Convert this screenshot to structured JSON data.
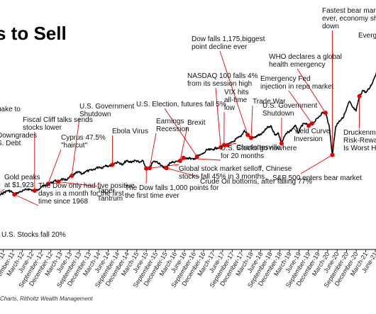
{
  "chart_data": {
    "type": "line",
    "title": "s to Sell",
    "source": "Charts, Ritholtz Wealth Management",
    "colors": {
      "line": "#000000",
      "marker": "#e60000",
      "leader": "#e60000",
      "axis": "#000000"
    },
    "x_start": "Sep-11",
    "x_end": "Jun-21",
    "x_ticks": [
      "June-11",
      "September-11",
      "December-11",
      "March-12",
      "June-12",
      "September-12",
      "December-12",
      "March-13",
      "June-13",
      "September-13",
      "December-13",
      "March-14",
      "June-14",
      "September-14",
      "December-14",
      "March-15",
      "June-15",
      "September-15",
      "December-15",
      "March-16",
      "June-16",
      "September-16",
      "December-16",
      "March-17",
      "June-17",
      "September-17",
      "December-17",
      "March-18",
      "June-18",
      "September-18",
      "December-18",
      "March-19",
      "June-19",
      "September-19",
      "December-19",
      "March-20",
      "June-20",
      "September-20",
      "December-20",
      "March-21",
      "June-21"
    ],
    "series": [
      {
        "values": [
          [
            "2011-09",
            1150
          ],
          [
            "2011-10",
            1180
          ],
          [
            "2011-11",
            1230
          ],
          [
            "2011-12",
            1250
          ],
          [
            "2012-01",
            1310
          ],
          [
            "2012-02",
            1360
          ],
          [
            "2012-03",
            1400
          ],
          [
            "2012-04",
            1390
          ],
          [
            "2012-05",
            1310
          ],
          [
            "2012-06",
            1350
          ],
          [
            "2012-07",
            1380
          ],
          [
            "2012-08",
            1410
          ],
          [
            "2012-09",
            1440
          ],
          [
            "2012-10",
            1420
          ],
          [
            "2012-11",
            1400
          ],
          [
            "2012-12",
            1430
          ],
          [
            "2013-01",
            1490
          ],
          [
            "2013-02",
            1510
          ],
          [
            "2013-03",
            1560
          ],
          [
            "2013-04",
            1590
          ],
          [
            "2013-05",
            1640
          ],
          [
            "2013-06",
            1610
          ],
          [
            "2013-07",
            1680
          ],
          [
            "2013-08",
            1640
          ],
          [
            "2013-09",
            1690
          ],
          [
            "2013-10",
            1750
          ],
          [
            "2013-11",
            1800
          ],
          [
            "2013-12",
            1840
          ],
          [
            "2014-01",
            1790
          ],
          [
            "2014-02",
            1850
          ],
          [
            "2014-03",
            1870
          ],
          [
            "2014-04",
            1880
          ],
          [
            "2014-05",
            1920
          ],
          [
            "2014-06",
            1960
          ],
          [
            "2014-07",
            1940
          ],
          [
            "2014-08",
            2000
          ],
          [
            "2014-09",
            1980
          ],
          [
            "2014-10",
            2010
          ],
          [
            "2014-11",
            2060
          ],
          [
            "2014-12",
            2060
          ],
          [
            "2015-01",
            2000
          ],
          [
            "2015-02",
            2100
          ],
          [
            "2015-03",
            2070
          ],
          [
            "2015-04",
            2090
          ],
          [
            "2015-05",
            2110
          ],
          [
            "2015-06",
            2060
          ],
          [
            "2015-07",
            2100
          ],
          [
            "2015-08",
            1920
          ],
          [
            "2015-09",
            1930
          ],
          [
            "2015-10",
            2080
          ],
          [
            "2015-11",
            2080
          ],
          [
            "2015-12",
            2040
          ],
          [
            "2016-01",
            1940
          ],
          [
            "2016-02",
            1930
          ],
          [
            "2016-03",
            2060
          ],
          [
            "2016-04",
            2070
          ],
          [
            "2016-05",
            2090
          ],
          [
            "2016-06",
            2100
          ],
          [
            "2016-07",
            2170
          ],
          [
            "2016-08",
            2170
          ],
          [
            "2016-09",
            2160
          ],
          [
            "2016-10",
            2130
          ],
          [
            "2016-11",
            2200
          ],
          [
            "2016-12",
            2240
          ],
          [
            "2017-01",
            2280
          ],
          [
            "2017-02",
            2360
          ],
          [
            "2017-03",
            2360
          ],
          [
            "2017-04",
            2380
          ],
          [
            "2017-05",
            2410
          ],
          [
            "2017-06",
            2420
          ],
          [
            "2017-07",
            2470
          ],
          [
            "2017-08",
            2470
          ],
          [
            "2017-09",
            2520
          ],
          [
            "2017-10",
            2570
          ],
          [
            "2017-11",
            2640
          ],
          [
            "2017-12",
            2670
          ],
          [
            "2018-01",
            2820
          ],
          [
            "2018-02",
            2710
          ],
          [
            "2018-03",
            2640
          ],
          [
            "2018-04",
            2650
          ],
          [
            "2018-05",
            2700
          ],
          [
            "2018-06",
            2720
          ],
          [
            "2018-07",
            2810
          ],
          [
            "2018-08",
            2900
          ],
          [
            "2018-09",
            2910
          ],
          [
            "2018-10",
            2710
          ],
          [
            "2018-11",
            2760
          ],
          [
            "2018-12",
            2510
          ],
          [
            "2019-01",
            2700
          ],
          [
            "2019-02",
            2780
          ],
          [
            "2019-03",
            2830
          ],
          [
            "2019-04",
            2940
          ],
          [
            "2019-05",
            2750
          ],
          [
            "2019-06",
            2940
          ],
          [
            "2019-07",
            2980
          ],
          [
            "2019-08",
            2930
          ],
          [
            "2019-09",
            2980
          ],
          [
            "2019-10",
            3040
          ],
          [
            "2019-11",
            3140
          ],
          [
            "2019-12",
            3230
          ],
          [
            "2020-01",
            3230
          ],
          [
            "2020-02",
            2950
          ],
          [
            "2020-03",
            2240
          ],
          [
            "2020-04",
            2910
          ],
          [
            "2020-05",
            3040
          ],
          [
            "2020-06",
            3100
          ],
          [
            "2020-07",
            3270
          ],
          [
            "2020-08",
            3500
          ],
          [
            "2020-09",
            3360
          ],
          [
            "2020-10",
            3270
          ],
          [
            "2020-11",
            3620
          ],
          [
            "2020-12",
            3760
          ],
          [
            "2021-01",
            3710
          ],
          [
            "2021-02",
            3810
          ],
          [
            "2021-03",
            3970
          ],
          [
            "2021-04",
            4180
          ],
          [
            "2021-05",
            4200
          ],
          [
            "2021-06",
            4300
          ]
        ]
      }
    ],
    "annotations": [
      {
        "lines": [
          "U.S. Stocks fall 20%"
        ],
        "date": "2011-10"
      },
      {
        "lines": [
          "Downgrades",
          "S. Debt"
        ],
        "date": "2011-09"
      },
      {
        "lines": [
          "uake to"
        ],
        "date": "2011-09"
      },
      {
        "lines": [
          "Gold peaks",
          "at $1,923"
        ],
        "date": "2011-09"
      },
      {
        "lines": [
          "Fiscal Cliff talks sends",
          "stocks lower"
        ],
        "date": "2012-11"
      },
      {
        "lines": [
          "Cyprus 47.5%",
          "\"haircut\""
        ],
        "date": "2013-03"
      },
      {
        "lines": [
          "The Dow only had five positive",
          "days in a month for the first",
          "time since 1968"
        ],
        "date": "2012-05"
      },
      {
        "lines": [
          "U.S. Government",
          "Shutdown"
        ],
        "date": "2013-10"
      },
      {
        "lines": [
          "Taper",
          "Tantrum"
        ],
        "date": "2013-06"
      },
      {
        "lines": [
          "Ebola Virus"
        ],
        "date": "2014-10"
      },
      {
        "lines": [
          "Earnings",
          "Recession"
        ],
        "date": "2015-09"
      },
      {
        "lines": [
          "The Dow falls 1,000 points for",
          "the first time ever"
        ],
        "date": "2015-08"
      },
      {
        "lines": [
          "U.S. Election, futures fall 5%"
        ],
        "date": "2016-11"
      },
      {
        "lines": [
          "Brexit"
        ],
        "date": "2016-06"
      },
      {
        "lines": [
          "Crude Oil bottoms, after falling 77%"
        ],
        "date": "2016-02"
      },
      {
        "lines": [
          "Global stock market selloff, Chinese",
          "stocks fall 45% in 3 months"
        ],
        "date": "2015-08"
      },
      {
        "lines": [
          "NASDAQ 100 falls 4%",
          "from its  session high"
        ],
        "date": "2017-06"
      },
      {
        "lines": [
          "VIX hits",
          "all-time",
          "low"
        ],
        "date": "2017-07"
      },
      {
        "lines": [
          "U.S. Stocks go nowhere",
          "for 20 months"
        ],
        "date": "2016-07"
      },
      {
        "lines": [
          "Charlottesville"
        ],
        "date": "2017-08"
      },
      {
        "lines": [
          "Dow falls 1,175,biggest",
          "point decline ever"
        ],
        "date": "2018-02"
      },
      {
        "lines": [
          "Trade War"
        ],
        "date": "2018-03"
      },
      {
        "lines": [
          "U.S. Government",
          "Shutdown"
        ],
        "date": "2018-12"
      },
      {
        "lines": [
          "Emergency Fed",
          "injection in repo market"
        ],
        "date": "2019-09"
      },
      {
        "lines": [
          "WHO declares a global",
          "health emergency"
        ],
        "date": "2020-01"
      },
      {
        "lines": [
          "Yield Curve",
          "Inversion"
        ],
        "date": "2019-08"
      },
      {
        "lines": [
          "S&P 500 enters bear market"
        ],
        "date": "2020-03"
      },
      {
        "lines": [
          "Fastest bear mark",
          "ever, economy shu",
          "down"
        ],
        "date": "2020-03"
      },
      {
        "lines": [
          "Evergra"
        ],
        "date": "2021-06"
      },
      {
        "lines": [
          "Druckenmi",
          "Risk-Rewar",
          "Is Worst H"
        ],
        "date": "2020-11"
      }
    ]
  }
}
